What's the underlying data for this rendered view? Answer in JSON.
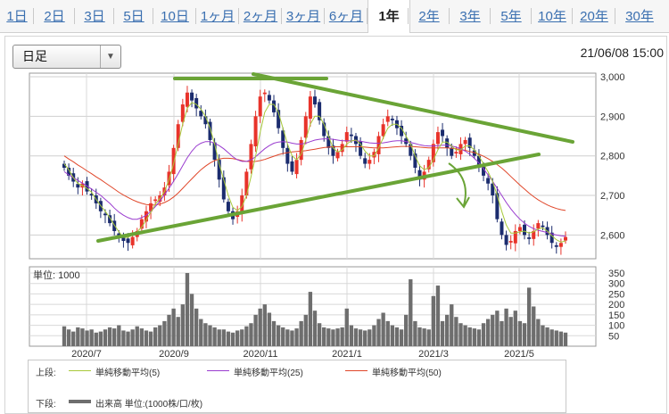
{
  "tabs": [
    "1日",
    "2日",
    "3日",
    "5日",
    "10日",
    "1ヶ月",
    "2ヶ月",
    "3ヶ月",
    "6ヶ月",
    "1年",
    "2年",
    "3年",
    "5年",
    "10年",
    "20年",
    "30年"
  ],
  "active_tab": "1年",
  "colors": {
    "tab_link": "#3a6fb0",
    "candle_up": "#e8332a",
    "candle_down": "#1b2c6e",
    "ma5": "#a8c93a",
    "ma25": "#9a3ccf",
    "ma50": "#e0472a",
    "volume": "#6e6e6e",
    "trendline": "#6aa436"
  },
  "period_select": {
    "value": "日足",
    "icon": "triangle-down-icon"
  },
  "timestamp": "21/06/08 15:00",
  "unit_label": "単位: 1000",
  "chart_data": [
    {
      "type": "candlestick",
      "panel": "price",
      "ylim": [
        2540,
        3000
      ],
      "y_ticks": [
        3000,
        2900,
        2800,
        2700,
        2600
      ],
      "y_tick_labels": [
        "3,000",
        "2,900",
        "2,800",
        "2,700",
        "2,600"
      ],
      "x_ticks": [
        "2020/7",
        "2020/9",
        "2020/11",
        "2021/1",
        "2021/3",
        "2021/5"
      ],
      "close": [
        2770,
        2750,
        2735,
        2720,
        2730,
        2710,
        2700,
        2680,
        2660,
        2650,
        2630,
        2610,
        2595,
        2585,
        2580,
        2595,
        2610,
        2640,
        2660,
        2680,
        2690,
        2700,
        2720,
        2760,
        2820,
        2880,
        2930,
        2960,
        2940,
        2920,
        2900,
        2880,
        2840,
        2790,
        2740,
        2690,
        2660,
        2640,
        2660,
        2700,
        2760,
        2830,
        2900,
        2950,
        2960,
        2940,
        2910,
        2870,
        2820,
        2780,
        2760,
        2790,
        2840,
        2900,
        2950,
        2930,
        2890,
        2850,
        2820,
        2800,
        2810,
        2830,
        2860,
        2850,
        2830,
        2800,
        2780,
        2790,
        2810,
        2850,
        2880,
        2900,
        2890,
        2870,
        2850,
        2830,
        2800,
        2770,
        2740,
        2760,
        2790,
        2830,
        2860,
        2850,
        2820,
        2800,
        2810,
        2830,
        2840,
        2820,
        2800,
        2770,
        2750,
        2730,
        2700,
        2640,
        2600,
        2575,
        2585,
        2610,
        2620,
        2600,
        2590,
        2610,
        2630,
        2620,
        2600,
        2580,
        2570,
        2580,
        2595
      ],
      "ma5": [
        2780,
        2765,
        2745,
        2730,
        2725,
        2718,
        2708,
        2690,
        2674,
        2660,
        2644,
        2625,
        2608,
        2594,
        2594,
        2601,
        2608,
        2620,
        2638,
        2658,
        2678,
        2692,
        2710,
        2740,
        2780,
        2830,
        2880,
        2920,
        2935,
        2930,
        2918,
        2900,
        2870,
        2830,
        2780,
        2740,
        2700,
        2670,
        2662,
        2672,
        2700,
        2748,
        2800,
        2860,
        2910,
        2930,
        2930,
        2910,
        2870,
        2830,
        2800,
        2790,
        2805,
        2840,
        2880,
        2900,
        2900,
        2880,
        2850,
        2820,
        2810,
        2815,
        2830,
        2838,
        2840,
        2830,
        2812,
        2800,
        2800,
        2820,
        2845,
        2870,
        2880,
        2880,
        2870,
        2850,
        2830,
        2800,
        2775,
        2765,
        2770,
        2790,
        2815,
        2835,
        2835,
        2825,
        2815,
        2815,
        2825,
        2825,
        2815,
        2800,
        2780,
        2760,
        2735,
        2700,
        2660,
        2625,
        2605,
        2605,
        2608,
        2610,
        2605,
        2608,
        2615,
        2618,
        2610,
        2598,
        2588,
        2582,
        2585
      ],
      "ma25": [
        2760,
        2752,
        2745,
        2738,
        2731,
        2724,
        2716,
        2708,
        2700,
        2690,
        2680,
        2668,
        2658,
        2650,
        2644,
        2640,
        2640,
        2644,
        2650,
        2660,
        2672,
        2686,
        2702,
        2718,
        2736,
        2755,
        2775,
        2795,
        2812,
        2825,
        2832,
        2836,
        2836,
        2832,
        2826,
        2818,
        2808,
        2798,
        2790,
        2786,
        2786,
        2790,
        2798,
        2808,
        2818,
        2826,
        2832,
        2835,
        2836,
        2835,
        2832,
        2830,
        2830,
        2832,
        2836,
        2840,
        2842,
        2843,
        2843,
        2842,
        2840,
        2838,
        2838,
        2838,
        2838,
        2837,
        2835,
        2833,
        2832,
        2832,
        2833,
        2835,
        2837,
        2838,
        2838,
        2836,
        2834,
        2831,
        2828,
        2826,
        2825,
        2825,
        2826,
        2827,
        2827,
        2825,
        2822,
        2818,
        2812,
        2804,
        2794,
        2782,
        2768,
        2752,
        2736,
        2718,
        2700,
        2682,
        2666,
        2652,
        2640,
        2630,
        2622,
        2616,
        2612,
        2609,
        2606,
        2603,
        2600,
        2598,
        2597
      ],
      "ma50": [
        2800,
        2792,
        2785,
        2777,
        2770,
        2762,
        2755,
        2747,
        2740,
        2732,
        2724,
        2716,
        2708,
        2701,
        2695,
        2689,
        2684,
        2680,
        2677,
        2676,
        2676,
        2678,
        2682,
        2688,
        2696,
        2706,
        2718,
        2730,
        2742,
        2754,
        2765,
        2774,
        2782,
        2788,
        2792,
        2794,
        2794,
        2793,
        2791,
        2788,
        2786,
        2785,
        2786,
        2788,
        2791,
        2795,
        2799,
        2803,
        2806,
        2808,
        2810,
        2811,
        2812,
        2813,
        2815,
        2817,
        2819,
        2821,
        2822,
        2823,
        2823,
        2823,
        2823,
        2823,
        2823,
        2823,
        2822,
        2821,
        2820,
        2820,
        2820,
        2821,
        2822,
        2823,
        2824,
        2824,
        2824,
        2823,
        2822,
        2821,
        2820,
        2820,
        2820,
        2820,
        2820,
        2819,
        2818,
        2816,
        2814,
        2811,
        2808,
        2804,
        2799,
        2793,
        2786,
        2778,
        2769,
        2759,
        2748,
        2737,
        2726,
        2716,
        2706,
        2697,
        2689,
        2682,
        2676,
        2671,
        2667,
        2664,
        2662
      ]
    },
    {
      "type": "bar",
      "panel": "volume",
      "ylim": [
        0,
        350
      ],
      "y_ticks": [
        350,
        300,
        250,
        200,
        150,
        100,
        50
      ],
      "values": [
        95,
        80,
        70,
        90,
        85,
        75,
        80,
        65,
        70,
        80,
        90,
        85,
        100,
        75,
        70,
        80,
        95,
        85,
        75,
        70,
        90,
        100,
        120,
        150,
        180,
        140,
        200,
        350,
        250,
        180,
        130,
        110,
        100,
        90,
        80,
        80,
        70,
        65,
        75,
        80,
        95,
        110,
        150,
        180,
        200,
        160,
        120,
        100,
        90,
        80,
        75,
        85,
        120,
        150,
        260,
        170,
        110,
        90,
        85,
        80,
        85,
        90,
        180,
        100,
        85,
        80,
        75,
        80,
        100,
        130,
        160,
        120,
        100,
        90,
        80,
        150,
        320,
        120,
        90,
        85,
        80,
        240,
        290,
        120,
        150,
        200,
        140,
        110,
        100,
        90,
        85,
        80,
        110,
        130,
        150,
        170,
        120,
        180,
        140,
        170,
        120,
        110,
        280,
        190,
        130,
        100,
        90,
        80,
        75,
        70,
        65
      ]
    }
  ],
  "legend": {
    "upper_label": "上段:",
    "lower_label": "下段:",
    "items": [
      {
        "label": "単純移動平均(5)",
        "color": "#a8c93a"
      },
      {
        "label": "単純移動平均(25)",
        "color": "#9a3ccf"
      },
      {
        "label": "単純移動平均(50)",
        "color": "#e0472a"
      }
    ],
    "volume_label": "出来高 単位:(1000株/口/枚)"
  }
}
